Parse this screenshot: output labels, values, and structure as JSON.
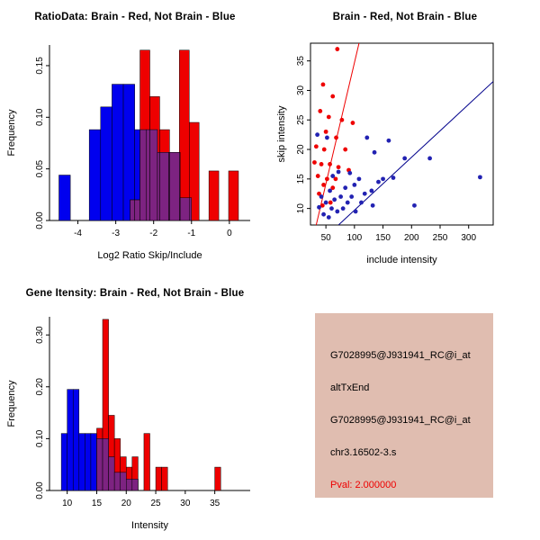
{
  "page": {
    "background": "#FFFFFF"
  },
  "chart_data": [
    {
      "id": "ratio-hist",
      "type": "bar",
      "title": "RatioData: Brain - Red, Not Brain - Blue",
      "xlabel": "Log2 Ratio Skip/Include",
      "ylabel": "Frequency",
      "xlim": [
        -4.75,
        0.55
      ],
      "ylim": [
        0,
        0.17
      ],
      "xticks": [
        -4,
        -3,
        -2,
        -1,
        0
      ],
      "xtick_labels": [
        "-4",
        "-3",
        "-2",
        "-1",
        "0"
      ],
      "yticks": [
        0,
        0.05,
        0.1,
        0.15
      ],
      "ytick_labels": [
        "0.00",
        "0.05",
        "0.10",
        "0.15"
      ],
      "box": false,
      "grid": false,
      "legend": "colors encode groups: Brain red, Not Brain blue",
      "overlap_color": "#7D2381",
      "series": [
        {
          "name": "Not Brain",
          "color": "#0000EE",
          "bars": [
            [
              -4.5,
              -4.2,
              0.044
            ],
            [
              -3.7,
              -3.4,
              0.088
            ],
            [
              -3.4,
              -3.1,
              0.11
            ],
            [
              -3.1,
              -2.8,
              0.132
            ],
            [
              -2.8,
              -2.5,
              0.132
            ],
            [
              -2.5,
              -2.2,
              0.088
            ],
            [
              -2.2,
              -1.9,
              0.088
            ],
            [
              -1.9,
              -1.6,
              0.066
            ],
            [
              -1.6,
              -1.3,
              0.066
            ],
            [
              -1.3,
              -1.0,
              0.022
            ]
          ]
        },
        {
          "name": "Brain",
          "color": "#EE0000",
          "bars": [
            [
              -2.62,
              -2.36,
              0.02
            ],
            [
              -2.36,
              -2.1,
              0.165
            ],
            [
              -2.1,
              -1.84,
              0.12
            ],
            [
              -1.84,
              -1.58,
              0.088
            ],
            [
              -1.58,
              -1.32,
              0.066
            ],
            [
              -1.32,
              -1.06,
              0.165
            ],
            [
              -1.06,
              -0.8,
              0.095
            ],
            [
              -0.54,
              -0.28,
              0.048
            ],
            [
              -0.02,
              0.24,
              0.048
            ]
          ]
        }
      ]
    },
    {
      "id": "intensity-scatter",
      "type": "scatter",
      "title": "Brain - Red, Not Brain - Blue",
      "xlabel": "include intensity",
      "ylabel": "skip intensity",
      "xlim": [
        23,
        343
      ],
      "ylim": [
        7.2,
        38
      ],
      "xticks": [
        50,
        100,
        150,
        200,
        250,
        300
      ],
      "yticks": [
        10,
        15,
        20,
        25,
        30,
        35
      ],
      "box": true,
      "grid": false,
      "series": [
        {
          "name": "Brain",
          "color": "#EE0000",
          "points": [
            [
              70,
              37
            ],
            [
              45,
              31
            ],
            [
              62,
              29
            ],
            [
              40,
              26.5
            ],
            [
              55,
              25.5
            ],
            [
              78,
              25
            ],
            [
              97,
              24.5
            ],
            [
              50,
              23
            ],
            [
              68,
              22
            ],
            [
              33,
              20.5
            ],
            [
              47,
              20
            ],
            [
              84,
              20
            ],
            [
              30,
              17.8
            ],
            [
              42,
              17.5
            ],
            [
              57,
              17.5
            ],
            [
              72,
              17
            ],
            [
              90,
              16.5
            ],
            [
              36,
              15.5
            ],
            [
              52,
              15
            ],
            [
              67,
              15
            ],
            [
              46,
              14
            ],
            [
              62,
              13.5
            ],
            [
              38,
              12.5
            ],
            [
              58,
              11
            ],
            [
              44,
              10.5
            ]
          ]
        },
        {
          "name": "Not Brain",
          "color": "#2222B2",
          "points": [
            [
              35,
              22.5
            ],
            [
              52,
              22
            ],
            [
              122,
              22
            ],
            [
              160,
              21.5
            ],
            [
              135,
              19.5
            ],
            [
              188,
              18.5
            ],
            [
              232,
              18.5
            ],
            [
              320,
              15.3
            ],
            [
              205,
              10.5
            ],
            [
              150,
              15
            ],
            [
              142,
              14.5
            ],
            [
              130,
              13
            ],
            [
              118,
              12.5
            ],
            [
              108,
              15
            ],
            [
              100,
              14
            ],
            [
              95,
              12
            ],
            [
              88,
              11
            ],
            [
              84,
              13.5
            ],
            [
              80,
              10
            ],
            [
              76,
              12
            ],
            [
              70,
              9.5
            ],
            [
              65,
              11.5
            ],
            [
              60,
              10
            ],
            [
              57,
              13
            ],
            [
              50,
              11
            ],
            [
              46,
              9
            ],
            [
              42,
              12
            ],
            [
              38,
              10.2
            ],
            [
              62,
              15.5
            ],
            [
              72,
              16.2
            ],
            [
              92,
              16
            ],
            [
              112,
              11
            ],
            [
              132,
              10.5
            ],
            [
              55,
              8.5
            ],
            [
              102,
              9.5
            ],
            [
              168,
              15.2
            ]
          ]
        }
      ],
      "lines": [
        {
          "name": "brain-fit-line",
          "color": "#EE0000",
          "from": [
            33,
            7.2
          ],
          "to": [
            108,
            38
          ]
        },
        {
          "name": "notbrain-fit-line",
          "color": "#00008B",
          "from": [
            72,
            7.2
          ],
          "to": [
            343,
            31.5
          ]
        }
      ]
    },
    {
      "id": "gene-hist",
      "type": "bar",
      "title": "Gene Itensity: Brain - Red, Not Brain - Blue",
      "xlabel": "Intensity",
      "ylabel": "Frequency",
      "xlim": [
        7,
        41
      ],
      "ylim": [
        0,
        0.335
      ],
      "xticks": [
        10,
        15,
        20,
        25,
        30,
        35
      ],
      "xtick_labels": [
        "10",
        "15",
        "20",
        "25",
        "30",
        "35"
      ],
      "yticks": [
        0,
        0.1,
        0.2,
        0.3
      ],
      "ytick_labels": [
        "0.00",
        "0.10",
        "0.20",
        "0.30"
      ],
      "box": false,
      "grid": false,
      "overlap_color": "#7D2381",
      "series": [
        {
          "name": "Not Brain",
          "color": "#0000EE",
          "bars": [
            [
              9,
              10,
              0.11
            ],
            [
              10,
              11,
              0.195
            ],
            [
              11,
              12,
              0.195
            ],
            [
              12,
              13,
              0.11
            ],
            [
              13,
              14,
              0.11
            ],
            [
              14,
              15,
              0.11
            ],
            [
              15,
              16,
              0.1
            ],
            [
              16,
              17,
              0.1
            ],
            [
              17,
              18,
              0.065
            ],
            [
              18,
              19,
              0.035
            ],
            [
              19,
              20,
              0.035
            ],
            [
              20,
              21,
              0.022
            ],
            [
              21,
              22,
              0.022
            ]
          ]
        },
        {
          "name": "Brain",
          "color": "#EE0000",
          "bars": [
            [
              15,
              16,
              0.12
            ],
            [
              16,
              17,
              0.33
            ],
            [
              17,
              18,
              0.145
            ],
            [
              18,
              19,
              0.1
            ],
            [
              19,
              20,
              0.065
            ],
            [
              20,
              21,
              0.045
            ],
            [
              21,
              22,
              0.065
            ],
            [
              23,
              24,
              0.11
            ],
            [
              25,
              26,
              0.045
            ],
            [
              26,
              27,
              0.045
            ],
            [
              35,
              36,
              0.045
            ]
          ]
        }
      ]
    }
  ],
  "info_box": {
    "bg": "#E0BDB0",
    "lines": [
      {
        "text": "G7028995@J931941_RC@i_at",
        "color": "#000000"
      },
      {
        "text": "altTxEnd",
        "color": "#000000"
      },
      {
        "text": "G7028995@J931941_RC@i_at",
        "color": "#000000"
      },
      {
        "text": "chr3.16502-3.s",
        "color": "#000000"
      },
      {
        "text": "Pval: 2.000000",
        "color": "#EE0000"
      }
    ]
  }
}
